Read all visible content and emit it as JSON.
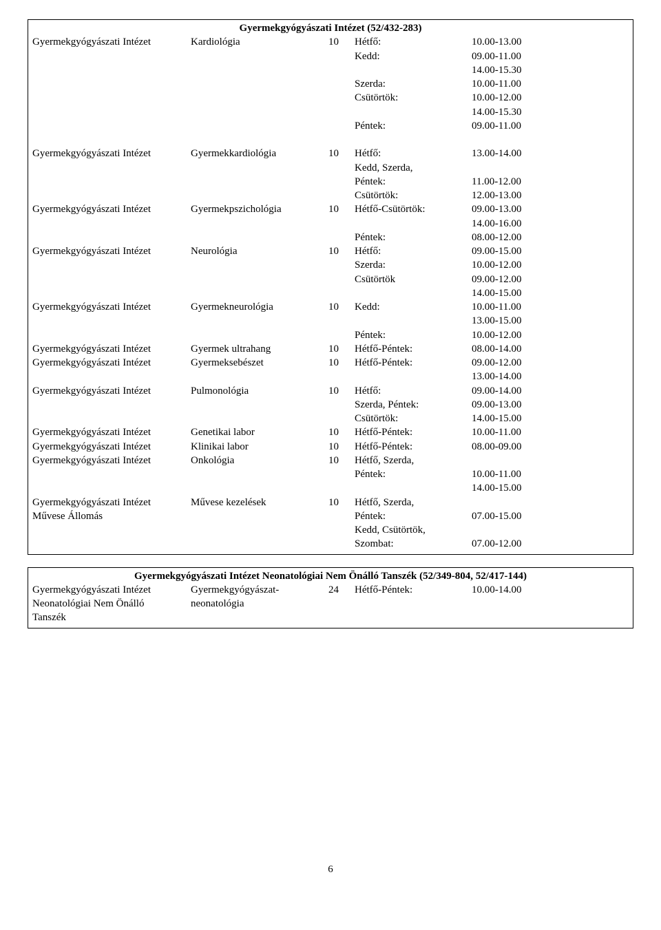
{
  "table1": {
    "title": "Gyermekgyógyászati Intézet (52/432-283)",
    "rows": [
      [
        "Gyermekgyógyászati Intézet",
        "Kardiológia",
        "10",
        "Hétfő:",
        "10.00-13.00"
      ],
      [
        "",
        "",
        "",
        "Kedd:",
        "09.00-11.00"
      ],
      [
        "",
        "",
        "",
        "",
        "14.00-15.30"
      ],
      [
        "",
        "",
        "",
        "Szerda:",
        "10.00-11.00"
      ],
      [
        "",
        "",
        "",
        "Csütörtök:",
        "10.00-12.00"
      ],
      [
        "",
        "",
        "",
        "",
        "14.00-15.30"
      ],
      [
        "",
        "",
        "",
        "Péntek:",
        "09.00-11.00"
      ],
      [
        " ",
        "",
        "",
        "",
        ""
      ],
      [
        "Gyermekgyógyászati Intézet",
        "Gyermekkardiológia",
        "10",
        "Hétfő:",
        "13.00-14.00"
      ],
      [
        "",
        "",
        "",
        "Kedd, Szerda,",
        ""
      ],
      [
        "",
        "",
        "",
        "Péntek:",
        "11.00-12.00"
      ],
      [
        "",
        "",
        "",
        "Csütörtök:",
        "12.00-13.00"
      ],
      [
        "Gyermekgyógyászati Intézet",
        "Gyermekpszichológia",
        "10",
        "Hétfő-Csütörtök:",
        "09.00-13.00"
      ],
      [
        "",
        "",
        "",
        "",
        "14.00-16.00"
      ],
      [
        "",
        "",
        "",
        "Péntek:",
        "08.00-12.00"
      ],
      [
        "Gyermekgyógyászati Intézet",
        "Neurológia",
        "10",
        "Hétfő:",
        "09.00-15.00"
      ],
      [
        "",
        "",
        "",
        "Szerda:",
        "10.00-12.00"
      ],
      [
        "",
        "",
        "",
        "Csütörtök",
        "09.00-12.00"
      ],
      [
        "",
        "",
        "",
        "",
        "14.00-15.00"
      ],
      [
        "Gyermekgyógyászati Intézet",
        "Gyermekneurológia",
        "10",
        "Kedd:",
        "10.00-11.00"
      ],
      [
        "",
        "",
        "",
        "",
        "13.00-15.00"
      ],
      [
        "",
        "",
        "",
        "Péntek:",
        "10.00-12.00"
      ],
      [
        "Gyermekgyógyászati Intézet",
        "Gyermek ultrahang",
        "10",
        "Hétfő-Péntek:",
        "08.00-14.00"
      ],
      [
        "Gyermekgyógyászati Intézet",
        "Gyermeksebészet",
        "10",
        "Hétfő-Péntek:",
        "09.00-12.00"
      ],
      [
        "",
        "",
        "",
        "",
        "13.00-14.00"
      ],
      [
        "Gyermekgyógyászati Intézet",
        "Pulmonológia",
        "10",
        "Hétfő:",
        "09.00-14.00"
      ],
      [
        "",
        "",
        "",
        "Szerda, Péntek:",
        "09.00-13.00"
      ],
      [
        "",
        "",
        "",
        "Csütörtök:",
        "14.00-15.00"
      ],
      [
        "Gyermekgyógyászati Intézet",
        "Genetikai labor",
        "10",
        "Hétfő-Péntek:",
        "10.00-11.00"
      ],
      [
        "Gyermekgyógyászati Intézet",
        "Klinikai labor",
        "10",
        "Hétfő-Péntek:",
        "08.00-09.00"
      ],
      [
        "Gyermekgyógyászati Intézet",
        "Onkológia",
        "10",
        "Hétfő, Szerda,",
        ""
      ],
      [
        "",
        "",
        "",
        "Péntek:",
        "10.00-11.00"
      ],
      [
        "",
        "",
        "",
        "",
        "14.00-15.00"
      ],
      [
        "Gyermekgyógyászati Intézet",
        "Művese kezelések",
        "10",
        "Hétfő, Szerda,",
        ""
      ],
      [
        "Művese Állomás",
        "",
        "",
        "Péntek:",
        "07.00-15.00"
      ],
      [
        "",
        "",
        "",
        "Kedd, Csütörtök,",
        ""
      ],
      [
        "",
        "",
        "",
        "Szombat:",
        "07.00-12.00"
      ]
    ]
  },
  "table2": {
    "title": "Gyermekgyógyászati Intézet Neonatológiai Nem Önálló Tanszék (52/349-804, 52/417-144)",
    "rows": [
      [
        "Gyermekgyógyászati Intézet",
        "Gyermekgyógyászat-",
        "24",
        "Hétfő-Péntek:",
        "10.00-14.00"
      ],
      [
        "Neonatológiai Nem Önálló",
        "neonatológia",
        "",
        "",
        ""
      ],
      [
        "Tanszék",
        "",
        "",
        "",
        ""
      ]
    ]
  },
  "pageNumber": "6"
}
